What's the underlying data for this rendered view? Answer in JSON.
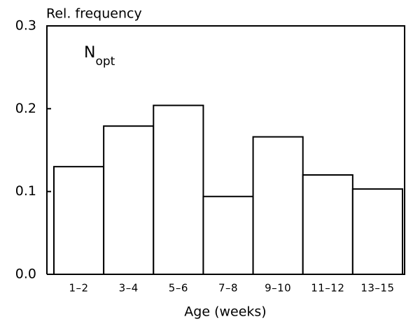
{
  "chart_data": {
    "type": "bar",
    "y_label": "Rel. frequency",
    "x_label": "Age (weeks)",
    "annotation": "N",
    "annotation_subscript": "opt",
    "categories": [
      "1–2",
      "3–4",
      "5–6",
      "7–8",
      "9–10",
      "11–12",
      "13–15"
    ],
    "values": [
      0.13,
      0.179,
      0.204,
      0.094,
      0.166,
      0.12,
      0.103
    ],
    "color": "#ffffff",
    "ylim": [
      0,
      0.3
    ],
    "yticks": [
      {
        "value": 0,
        "label": "0.0"
      },
      0.1,
      0.2,
      0.3
    ],
    "grid": false
  }
}
